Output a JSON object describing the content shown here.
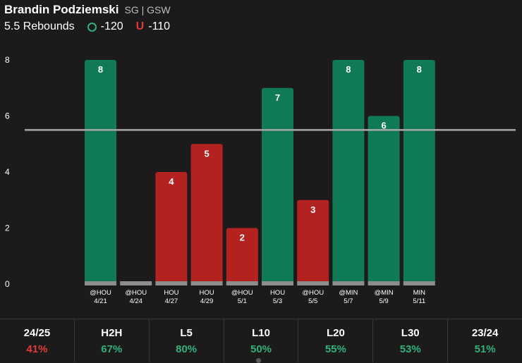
{
  "header": {
    "player": "Brandin Podziemski",
    "team_info": "SG | GSW",
    "stat_line": "5.5 Rebounds",
    "over_odds": "-120",
    "under_label": "U",
    "under_odds": "-110",
    "over_color": "#2fb27a",
    "under_color": "#e23a3a"
  },
  "chart_data": {
    "type": "bar",
    "categories": [
      {
        "opp": "@HOU",
        "date": "4/21"
      },
      {
        "opp": "@HOU",
        "date": "4/24"
      },
      {
        "opp": "HOU",
        "date": "4/27"
      },
      {
        "opp": "HOU",
        "date": "4/29"
      },
      {
        "opp": "@HOU",
        "date": "5/1"
      },
      {
        "opp": "HOU",
        "date": "5/3"
      },
      {
        "opp": "@HOU",
        "date": "5/5"
      },
      {
        "opp": "@MIN",
        "date": "5/7"
      },
      {
        "opp": "@MIN",
        "date": "5/9"
      },
      {
        "opp": "MIN",
        "date": "5/11"
      }
    ],
    "values": [
      8,
      0,
      4,
      5,
      2,
      7,
      3,
      8,
      6,
      8
    ],
    "line": 5.5,
    "ylim": [
      0,
      8
    ],
    "yticks": [
      0,
      2,
      4,
      6,
      8
    ],
    "colors": {
      "over": "#0f7a55",
      "under": "#b3221f",
      "base": "#8d8d8d",
      "line": "#a8a8a8"
    }
  },
  "footer": {
    "tabs": [
      {
        "label": "24/25",
        "value": "41%",
        "color": "#e23a3a"
      },
      {
        "label": "H2H",
        "value": "67%",
        "color": "#2fb27a"
      },
      {
        "label": "L5",
        "value": "80%",
        "color": "#2fb27a"
      },
      {
        "label": "L10",
        "value": "50%",
        "color": "#2fb27a"
      },
      {
        "label": "L20",
        "value": "55%",
        "color": "#2fb27a"
      },
      {
        "label": "L30",
        "value": "53%",
        "color": "#2fb27a"
      },
      {
        "label": "23/24",
        "value": "51%",
        "color": "#2fb27a"
      }
    ]
  }
}
